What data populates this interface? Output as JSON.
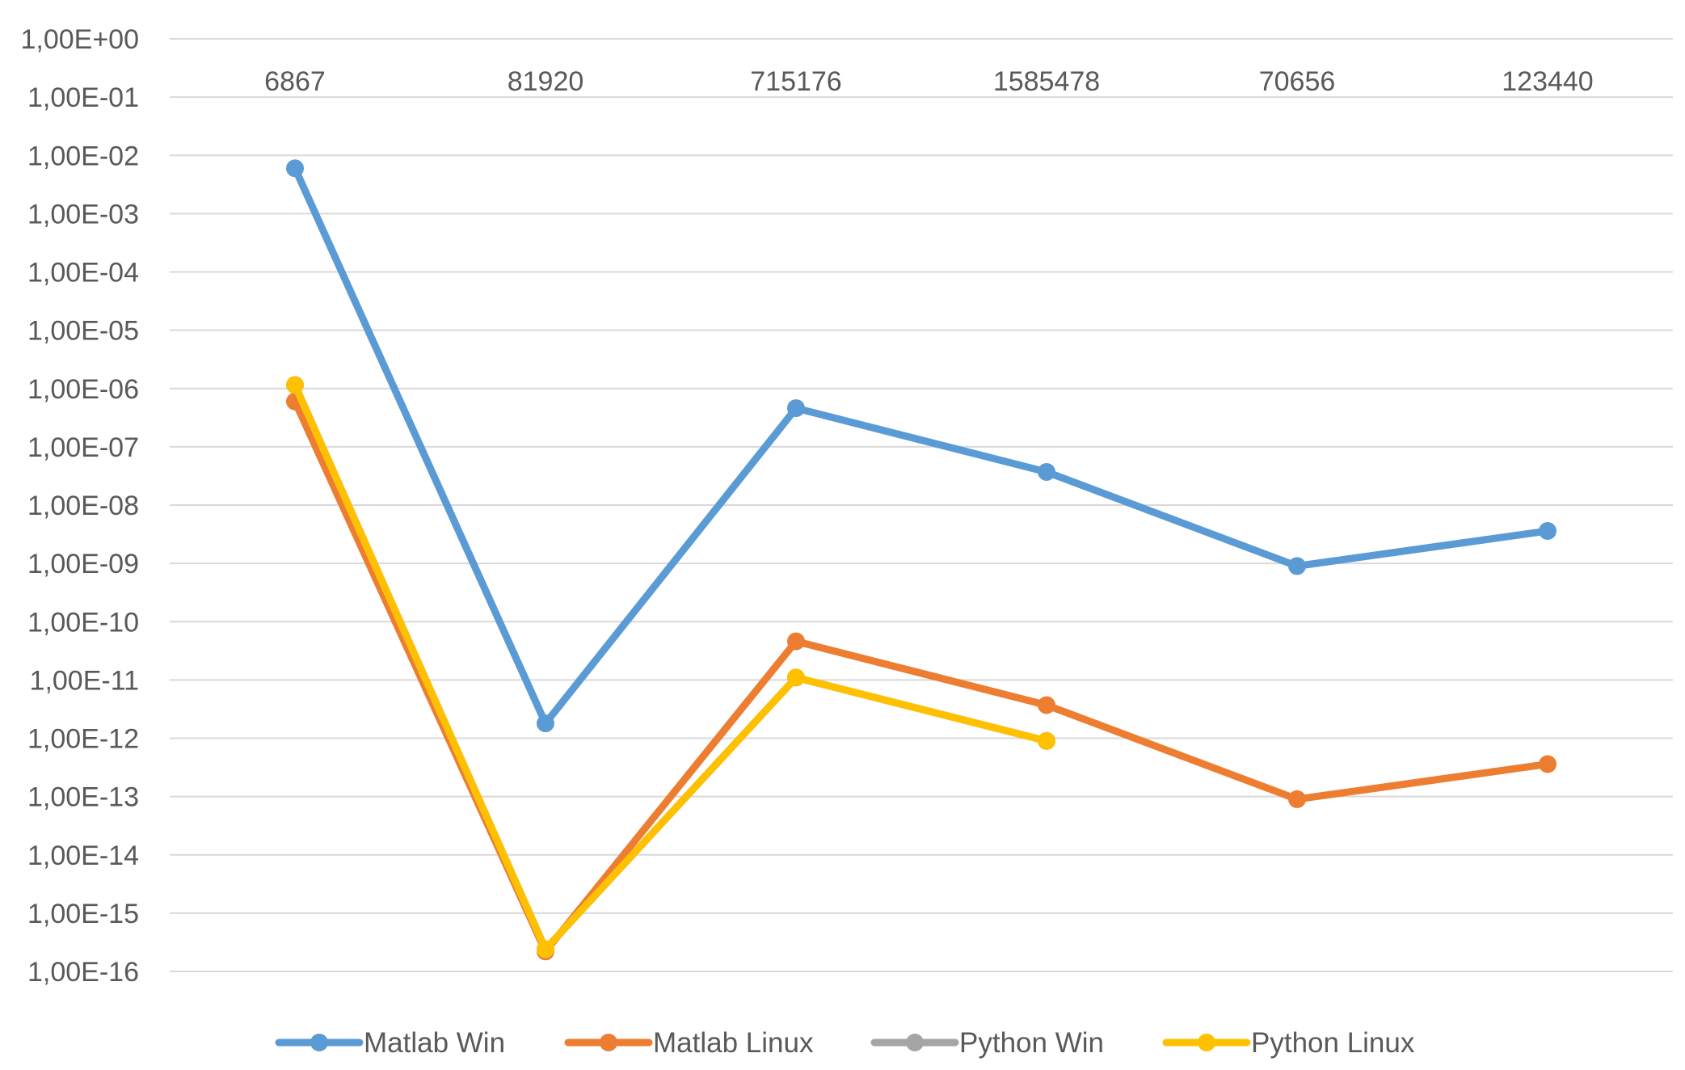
{
  "chart_data": {
    "type": "line",
    "title": "",
    "xlabel": "",
    "ylabel": "",
    "categories": [
      "6867",
      "81920",
      "715176",
      "1585478",
      "70656",
      "123440"
    ],
    "y_scale": "log10",
    "ylim": [
      1e-16,
      1
    ],
    "y_ticks": [
      {
        "value": 1,
        "label": "1,00E+00"
      },
      {
        "value": 0.1,
        "label": "1,00E-01"
      },
      {
        "value": 0.01,
        "label": "1,00E-02"
      },
      {
        "value": 0.001,
        "label": "1,00E-03"
      },
      {
        "value": 0.0001,
        "label": "1,00E-04"
      },
      {
        "value": 1e-05,
        "label": "1,00E-05"
      },
      {
        "value": 1e-06,
        "label": "1,00E-06"
      },
      {
        "value": 1e-07,
        "label": "1,00E-07"
      },
      {
        "value": 1e-08,
        "label": "1,00E-08"
      },
      {
        "value": 1e-09,
        "label": "1,00E-09"
      },
      {
        "value": 1e-10,
        "label": "1,00E-10"
      },
      {
        "value": 1e-11,
        "label": "1,00E-11"
      },
      {
        "value": 1e-12,
        "label": "1,00E-12"
      },
      {
        "value": 1e-13,
        "label": "1,00E-13"
      },
      {
        "value": 1e-14,
        "label": "1,00E-14"
      },
      {
        "value": 1e-15,
        "label": "1,00E-15"
      },
      {
        "value": 1e-16,
        "label": "1,00E-16"
      }
    ],
    "x_axis_position": "top",
    "grid": true,
    "legend": "bottom",
    "series": [
      {
        "name": "Matlab Win",
        "color": "#5B9BD5",
        "values": [
          0.006,
          1.8e-12,
          4.6e-07,
          3.7e-08,
          9e-10,
          3.6e-09
        ]
      },
      {
        "name": "Matlab Linux",
        "color": "#ED7D31",
        "values": [
          6e-07,
          2.2e-16,
          4.6e-11,
          3.7e-12,
          9e-14,
          3.6e-13
        ]
      },
      {
        "name": "Python Win",
        "color": "#A5A5A5",
        "values": [
          1.15e-06,
          2.4e-16,
          1.1e-11,
          9e-13,
          null,
          null
        ]
      },
      {
        "name": "Python Linux",
        "color": "#FFC000",
        "values": [
          1.15e-06,
          2.4e-16,
          1.1e-11,
          9e-13,
          null,
          null
        ]
      }
    ]
  }
}
